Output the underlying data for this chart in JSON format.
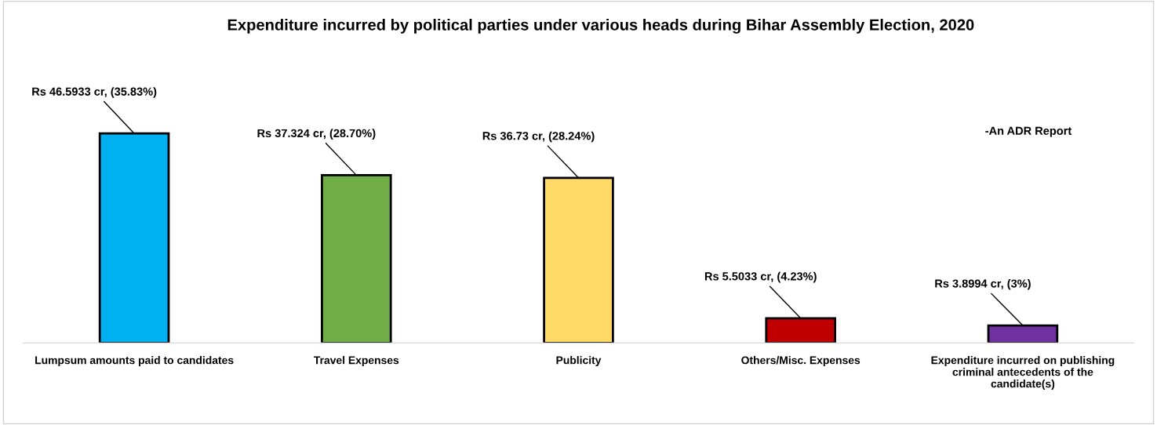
{
  "chart_data": {
    "type": "bar",
    "title": "Expenditure incurred by political parties under various heads during Bihar Assembly Election, 2020",
    "categories": [
      "Lumpsum amounts paid to candidates",
      "Travel Expenses",
      "Publicity",
      "Others/Misc. Expenses",
      "Expenditure incurred on publishing criminal antecedents of the candidate(s)"
    ],
    "values": [
      46.5933,
      37.324,
      36.73,
      5.5033,
      3.8994
    ],
    "colors": [
      "#00b0f0",
      "#70ad47",
      "#ffd966",
      "#c00000",
      "#7030a0"
    ],
    "value_labels": [
      "Rs 46.5933 cr, (35.83%)",
      "Rs 37.324 cr, (28.70%)",
      "Rs 36.73 cr, (28.24%)",
      "Rs 5.5033 cr, (4.23%)",
      "Rs 3.8994 cr, (3%)"
    ],
    "annotations": [
      "-An ADR Report"
    ],
    "grid": false,
    "legend": false,
    "tick_labels": "x"
  }
}
